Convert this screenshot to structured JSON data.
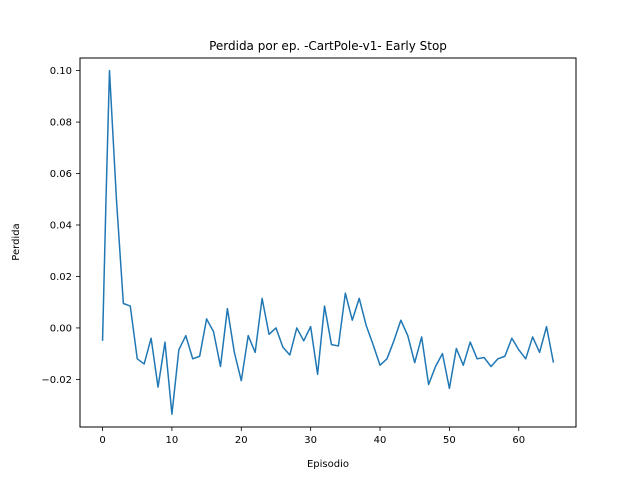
{
  "chart_data": {
    "type": "line",
    "title": "Perdida por ep. -CartPole-v1- Early Stop",
    "xlabel": "Episodio",
    "ylabel": "Perdida",
    "xlim": [
      -3.25,
      68.25
    ],
    "ylim": [
      -0.0385,
      0.1049
    ],
    "xticks": [
      0,
      10,
      20,
      30,
      40,
      50,
      60
    ],
    "xtick_labels": [
      "0",
      "10",
      "20",
      "30",
      "40",
      "50",
      "60"
    ],
    "yticks": [
      -0.02,
      0.0,
      0.02,
      0.04,
      0.06,
      0.08,
      0.1
    ],
    "ytick_labels": [
      "−0.02",
      "0.00",
      "0.02",
      "0.04",
      "0.06",
      "0.08",
      "0.10"
    ],
    "grid": false,
    "line_color": "#1f77b4",
    "series": [
      {
        "x": [
          0,
          0.5,
          1,
          2,
          3,
          4,
          5,
          6,
          7,
          8,
          9,
          10,
          11,
          12,
          13,
          14,
          15,
          16,
          17,
          18,
          19,
          20,
          21,
          22,
          23,
          24,
          25,
          26,
          27,
          28,
          29,
          30,
          31,
          32,
          33,
          34,
          35,
          36,
          37,
          38,
          39,
          40,
          41,
          42,
          43,
          44,
          45,
          46,
          47,
          48,
          49,
          50,
          51,
          52,
          53,
          54,
          55,
          56,
          57,
          58,
          59,
          60,
          61,
          62,
          63,
          64,
          65
        ],
        "values": [
          -0.005,
          0.05,
          0.1,
          0.05,
          0.0095,
          0.0085,
          -0.012,
          -0.014,
          -0.004,
          -0.023,
          -0.0055,
          -0.0335,
          -0.0085,
          -0.003,
          -0.012,
          -0.011,
          0.0035,
          -0.0015,
          -0.015,
          0.0075,
          -0.0095,
          -0.0205,
          -0.003,
          -0.0095,
          0.0115,
          -0.0025,
          0.0,
          -0.0075,
          -0.0105,
          0.0,
          -0.005,
          0.0005,
          -0.018,
          0.0085,
          -0.0065,
          -0.007,
          0.0135,
          0.003,
          0.0115,
          0.001,
          -0.0065,
          -0.0145,
          -0.012,
          -0.005,
          0.003,
          -0.003,
          -0.0135,
          -0.0035,
          -0.022,
          -0.015,
          -0.01,
          -0.0235,
          -0.008,
          -0.0145,
          -0.0055,
          -0.012,
          -0.0115,
          -0.015,
          -0.012,
          -0.011,
          -0.004,
          -0.0085,
          -0.012,
          -0.0035,
          -0.0095,
          0.0005,
          -0.0135
        ]
      }
    ]
  }
}
